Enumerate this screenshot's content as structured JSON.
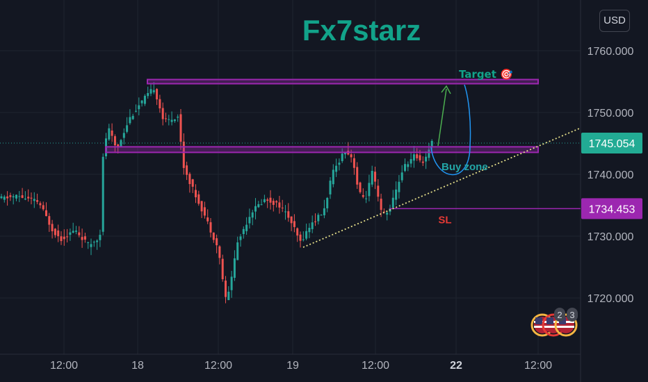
{
  "header": {
    "title": "Fx7starz",
    "currency_label": "USD"
  },
  "chart_data": {
    "type": "candlestick",
    "title": "Fx7starz",
    "y_ticks": [
      "1720.000",
      "1730.000",
      "1740.000",
      "1750.000",
      "1760.000"
    ],
    "y_tick_values": [
      1720,
      1730,
      1740,
      1750,
      1760
    ],
    "ylim": [
      1714,
      1767
    ],
    "x_ticks": [
      "12:00",
      "18",
      "12:00",
      "19",
      "12:00",
      "22",
      "12:00"
    ],
    "current_price": {
      "label": "1745.054",
      "value": 1745.054
    },
    "stop_loss_price": {
      "label": "1734.453",
      "value": 1734.453
    },
    "annotations": {
      "target": "Target 🎯",
      "buy_zone": "Buy zone",
      "stop_loss": "SL"
    },
    "zones": {
      "resistance_top": 1755,
      "resistance_mid": 1744
    },
    "trendline": {
      "from": 1728.2,
      "to": 1747.5
    },
    "colors": {
      "up": "#26a69a",
      "down": "#ef5350",
      "level": "#9c27b0",
      "title": "#12a38a",
      "target_arrow": "#4caf50",
      "buy_arc": "#2196f3",
      "trendline": "#e6e08a"
    },
    "grid": true,
    "legend": "none"
  },
  "badges": {
    "count_a": "2",
    "count_b": "3",
    "flag_icon": "us-flag-icon"
  }
}
